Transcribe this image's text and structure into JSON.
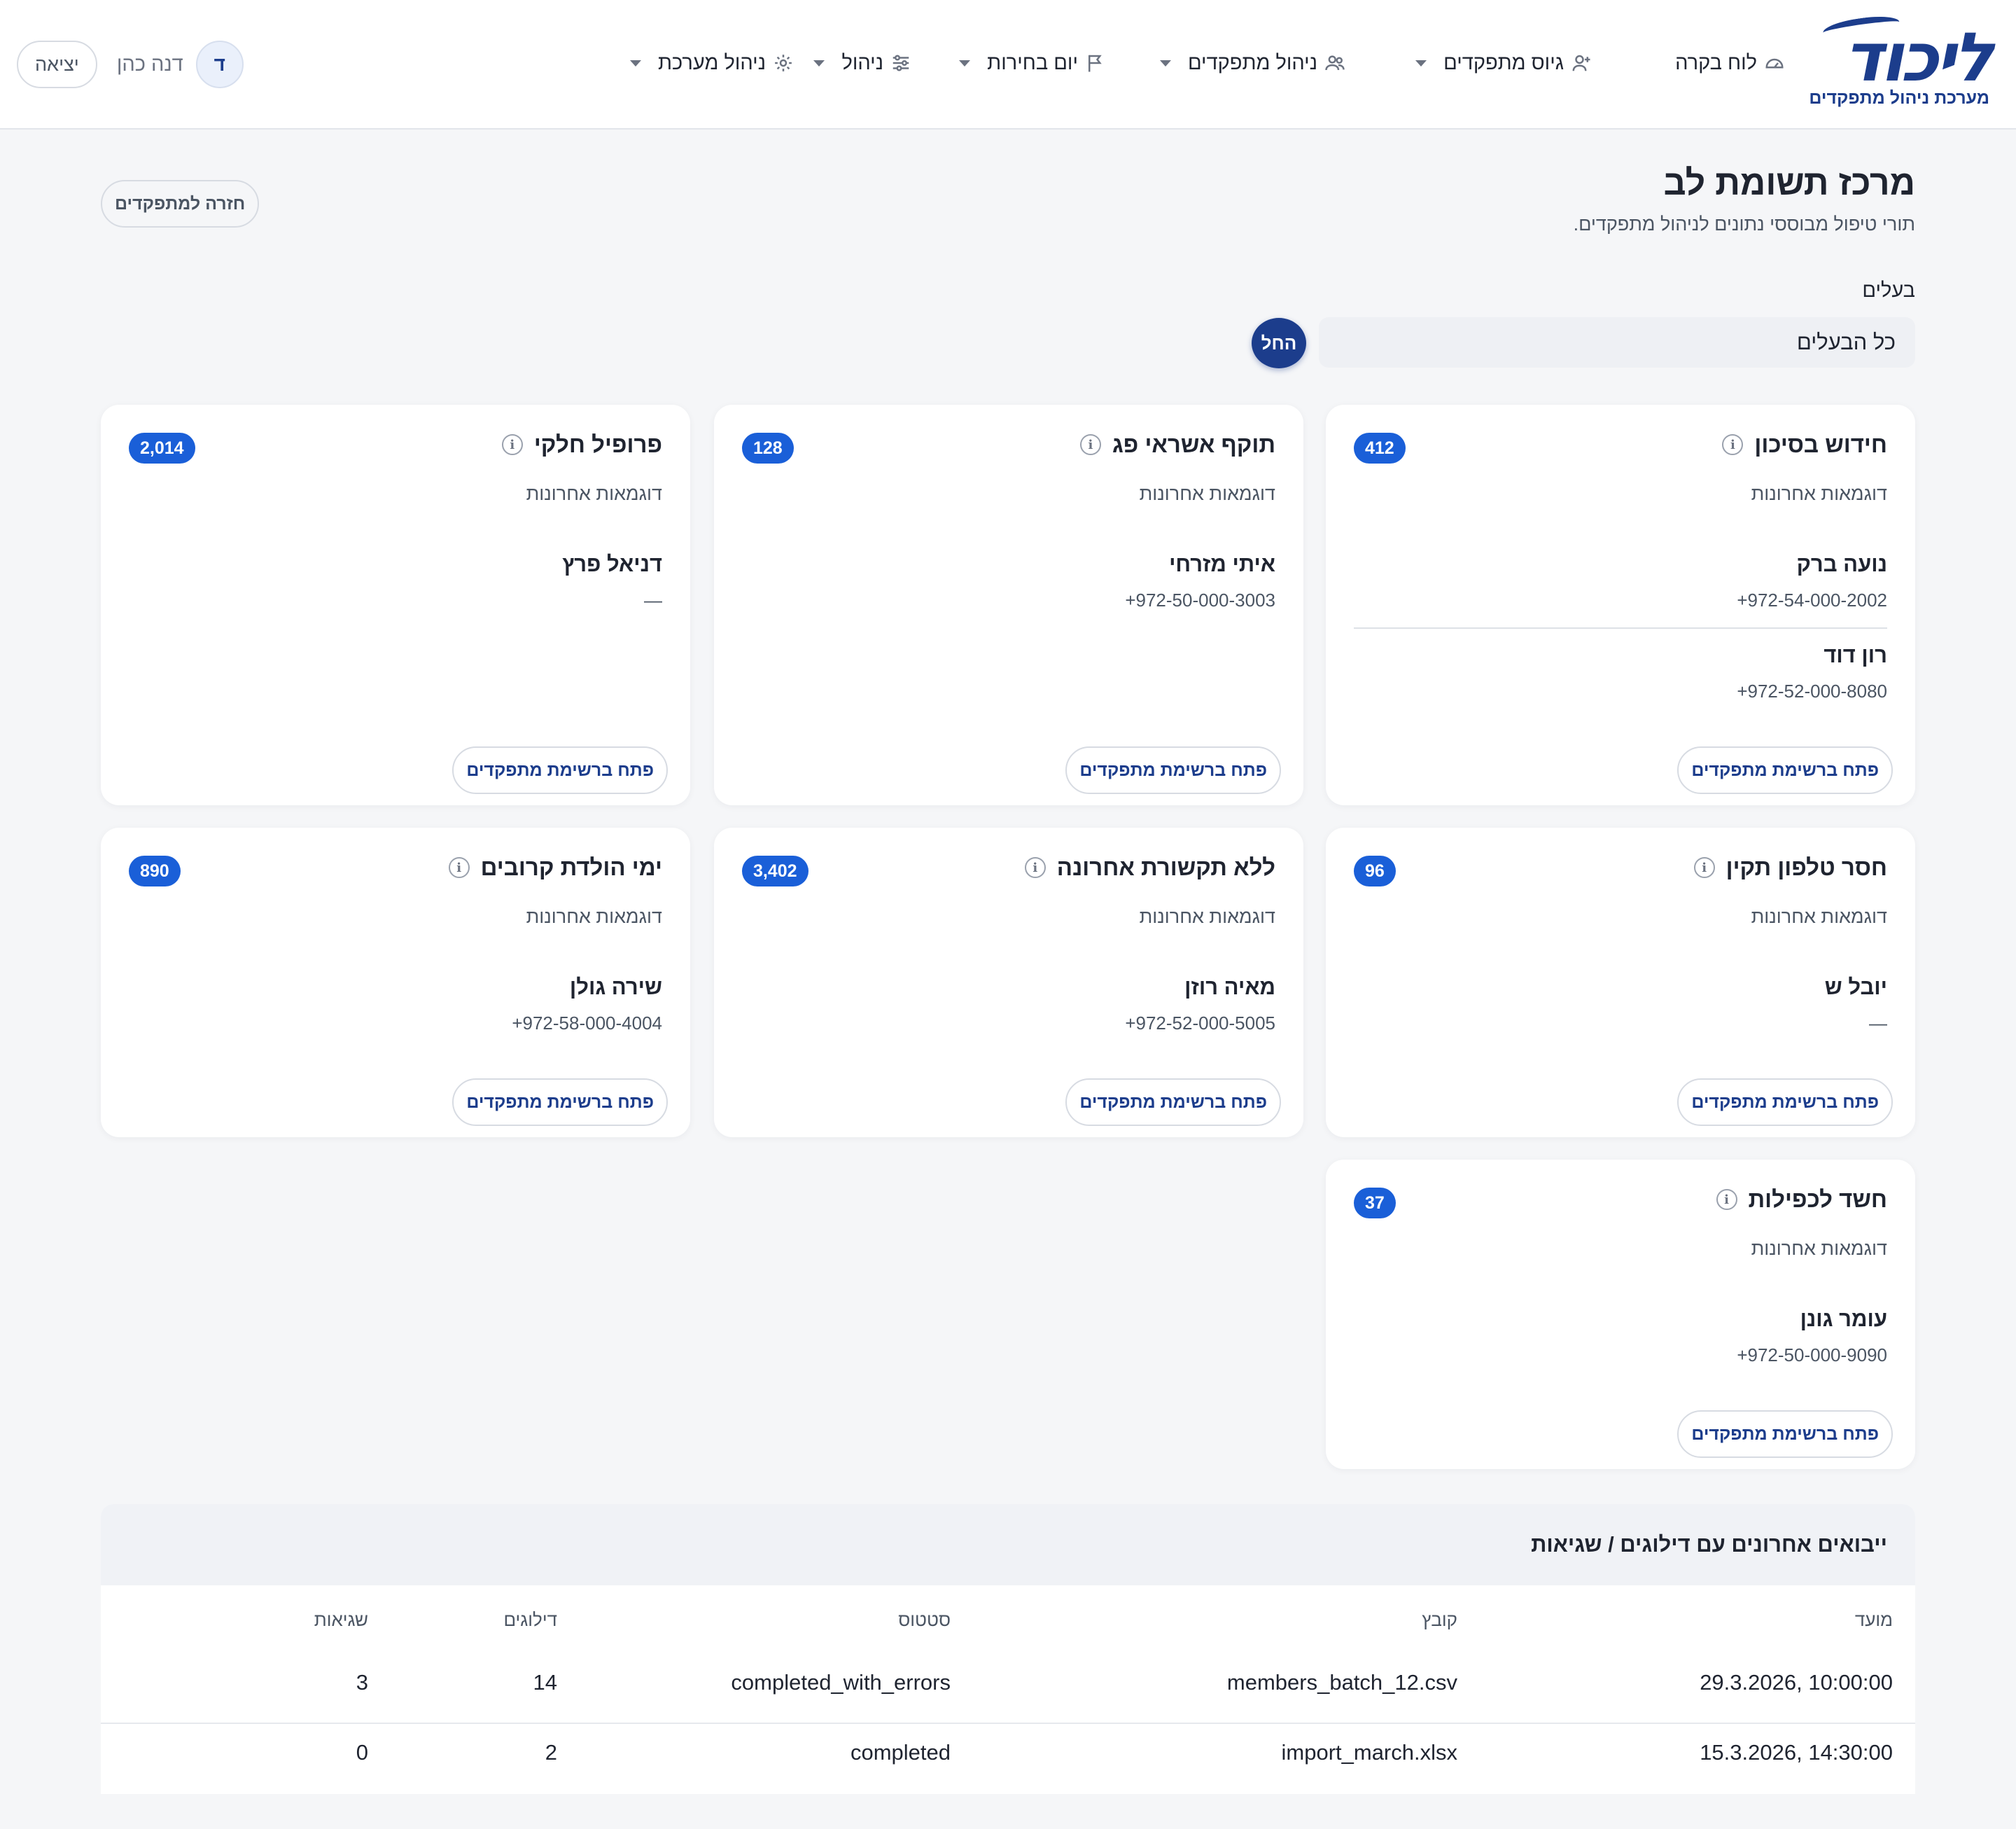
{
  "header": {
    "logo_text": "ליכוד",
    "logo_subtitle": "מערכת ניהול מתפקדים",
    "nav": [
      {
        "label": "לוח בקרה",
        "icon": "dashboard-icon",
        "has_caret": false
      },
      {
        "label": "גיוס מתפקדים",
        "icon": "user-plus-icon",
        "has_caret": true
      },
      {
        "label": "ניהול מתפקדים",
        "icon": "users-icon",
        "has_caret": true
      },
      {
        "label": "יום בחירות",
        "icon": "flag-icon",
        "has_caret": true
      },
      {
        "label": "ניהול",
        "icon": "sliders-icon",
        "has_caret": true
      },
      {
        "label": "ניהול מערכת",
        "icon": "gear-icon",
        "has_caret": true
      }
    ],
    "user_initial": "ד",
    "user_name": "דנה כהן",
    "logout_label": "יציאה"
  },
  "page": {
    "title": "מרכז תשומת לב",
    "subtitle": "תורי טיפול מבוססי נתונים לניהול מתפקדים.",
    "back_label": "חזרה למתפקדים"
  },
  "filter": {
    "owners_label": "בעלים",
    "owners_value": "כל הבעלים",
    "start_label": "החל"
  },
  "cards": [
    {
      "title": "חידוש בסיכון",
      "count": "412",
      "subtitle": "דוגמאות אחרונות",
      "samples": [
        {
          "name": "נועה ברק",
          "phone": "972-54-000-2002+"
        },
        {
          "name": "רון דוד",
          "phone": "972-52-000-8080+"
        }
      ],
      "button": "פתח ברשימת מתפקדים"
    },
    {
      "title": "תוקף אשראי פג",
      "count": "128",
      "subtitle": "דוגמאות אחרונות",
      "samples": [
        {
          "name": "איתי מזרחי",
          "phone": "972-50-000-3003+"
        }
      ],
      "button": "פתח ברשימת מתפקדים"
    },
    {
      "title": "פרופיל חלקי",
      "count": "2,014",
      "subtitle": "דוגמאות אחרונות",
      "samples": [
        {
          "name": "דניאל פרץ",
          "phone": "—"
        }
      ],
      "button": "פתח ברשימת מתפקדים"
    },
    {
      "title": "חסר טלפון תקין",
      "count": "96",
      "subtitle": "דוגמאות אחרונות",
      "samples": [
        {
          "name": "יובל ש",
          "phone": "—"
        }
      ],
      "button": "פתח ברשימת מתפקדים"
    },
    {
      "title": "ללא תקשורת אחרונה",
      "count": "3,402",
      "subtitle": "דוגמאות אחרונות",
      "samples": [
        {
          "name": "מאיה רוזן",
          "phone": "972-52-000-5005+"
        }
      ],
      "button": "פתח ברשימת מתפקדים"
    },
    {
      "title": "ימי הולדת קרובים",
      "count": "890",
      "subtitle": "דוגמאות אחרונות",
      "samples": [
        {
          "name": "שירה גולן",
          "phone": "972-58-000-4004+"
        }
      ],
      "button": "פתח ברשימת מתפקדים"
    },
    {
      "title": "חשד לכפילות",
      "count": "37",
      "subtitle": "דוגמאות אחרונות",
      "samples": [
        {
          "name": "עומר גונן",
          "phone": "972-50-000-9090+"
        }
      ],
      "button": "פתח ברשימת מתפקדים"
    }
  ],
  "imports": {
    "title": "ייבואים אחרונים עם דילוגים / שגיאות",
    "columns": [
      "מועד",
      "קובץ",
      "סטטוס",
      "דילוגים",
      "שגיאות"
    ],
    "rows": [
      [
        "29.3.2026, 10:00:00",
        "members_batch_12.csv",
        "completed_with_errors",
        "14",
        "3"
      ],
      [
        "15.3.2026, 14:30:00",
        "import_march.xlsx",
        "completed",
        "2",
        "0"
      ]
    ]
  }
}
